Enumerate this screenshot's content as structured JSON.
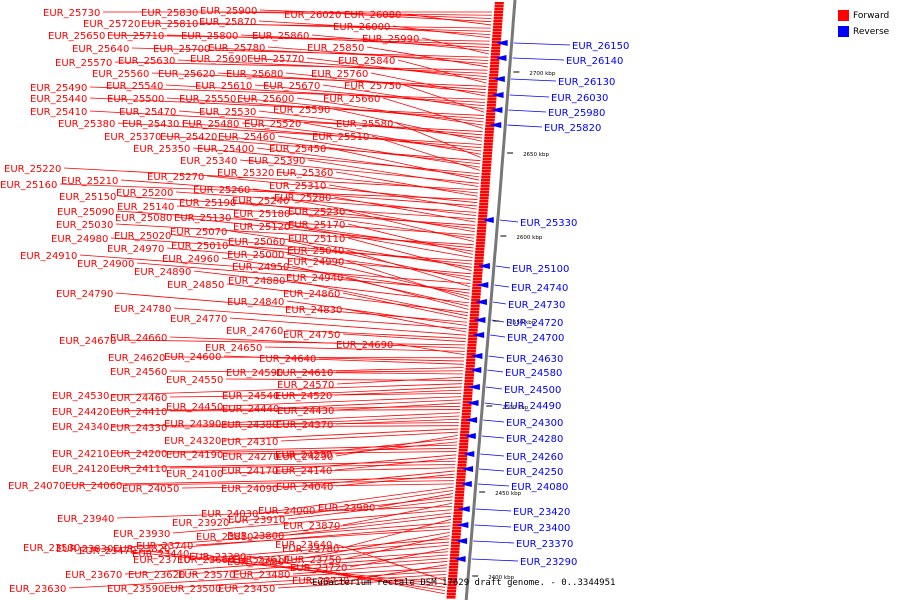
{
  "legend": {
    "forward_label": "Forward",
    "reverse_label": "Reverse",
    "forward_color": "#ff0000",
    "reverse_color": "#0000ff"
  },
  "caption": "Eubacterium rectale DSM 17629 draft genome. - 0..3344951",
  "ticks": [
    "2700 kbp",
    "2650 kbp",
    "2600 kbp",
    "2550 kbp",
    "2500 kbp",
    "2450 kbp",
    "2400 kbp"
  ],
  "forward_labels": [
    "EUR_25730",
    "EUR_25830",
    "EUR_25900",
    "EUR_26020",
    "EUR_26080",
    "EUR_25720",
    "EUR_25810",
    "EUR_25870",
    "EUR_26000",
    "EUR_25650",
    "EUR_25710",
    "EUR_25800",
    "EUR_25860",
    "EUR_25990",
    "EUR_25640",
    "EUR_25700",
    "EUR_25780",
    "EUR_25850",
    "EUR_25570",
    "EUR_25630",
    "EUR_25690",
    "EUR_25770",
    "EUR_25840",
    "EUR_25560",
    "EUR_25620",
    "EUR_25680",
    "EUR_25760",
    "EUR_25490",
    "EUR_25540",
    "EUR_25610",
    "EUR_25670",
    "EUR_25750",
    "EUR_25440",
    "EUR_25500",
    "EUR_25550",
    "EUR_25600",
    "EUR_25660",
    "EUR_25410",
    "EUR_25470",
    "EUR_25530",
    "EUR_25590",
    "EUR_25380",
    "EUR_25430",
    "EUR_25480",
    "EUR_25520",
    "EUR_25580",
    "EUR_25370",
    "EUR_25420",
    "EUR_25460",
    "EUR_25510",
    "EUR_25350",
    "EUR_25400",
    "EUR_25450",
    "EUR_25340",
    "EUR_25390",
    "EUR_25220",
    "EUR_25320",
    "EUR_25360",
    "EUR_25160",
    "EUR_25270",
    "EUR_25210",
    "EUR_25310",
    "EUR_25200",
    "EUR_25260",
    "EUR_25150",
    "EUR_25280",
    "EUR_25140",
    "EUR_25190",
    "EUR_25240",
    "EUR_25090",
    "EUR_25180",
    "EUR_25230",
    "EUR_25030",
    "EUR_25080",
    "EUR_25130",
    "EUR_25170",
    "EUR_25120",
    "EUR_24980",
    "EUR_25020",
    "EUR_25070",
    "EUR_25110",
    "EUR_24970",
    "EUR_25010",
    "EUR_25060",
    "EUR_24910",
    "EUR_25040",
    "EUR_24900",
    "EUR_24960",
    "EUR_25000",
    "EUR_24990",
    "EUR_24890",
    "EUR_24950",
    "EUR_24940",
    "EUR_24850",
    "EUR_24880",
    "EUR_24860",
    "EUR_24790",
    "EUR_24840",
    "EUR_24780",
    "EUR_24830",
    "EUR_24770",
    "EUR_24760",
    "EUR_24750",
    "EUR_24670",
    "EUR_24660",
    "EUR_24650",
    "EUR_24690",
    "EUR_24620",
    "EUR_24640",
    "EUR_24600",
    "EUR_24590",
    "EUR_24610",
    "EUR_24560",
    "EUR_24570",
    "EUR_24550",
    "EUR_24530",
    "EUR_24540",
    "EUR_24520",
    "EUR_24460",
    "EUR_24450",
    "EUR_24440",
    "EUR_24430",
    "EUR_24420",
    "EUR_24410",
    "EUR_24390",
    "EUR_24380",
    "EUR_24370",
    "EUR_24340",
    "EUR_24330",
    "EUR_24320",
    "EUR_24310",
    "EUR_24290",
    "EUR_24270",
    "EUR_24230",
    "EUR_24210",
    "EUR_24200",
    "EUR_24190",
    "EUR_24170",
    "EUR_24140",
    "EUR_24120",
    "EUR_24110",
    "EUR_24100",
    "EUR_24090",
    "EUR_24040",
    "EUR_24070",
    "EUR_24060",
    "EUR_24050",
    "EUR_24030",
    "EUR_24000",
    "EUR_23980",
    "EUR_23920",
    "EUR_23910",
    "EUR_23870",
    "EUR_23940",
    "EUR_23930",
    "EUR_23810",
    "EUR_23800",
    "EUR_23780",
    "EUR_23830",
    "EUR_23820",
    "EUR_23740",
    "EUR_23680",
    "EUR_23750",
    "EUR_23710",
    "EUR_23660",
    "EUR_23610",
    "EUR_23720",
    "EUR_23670",
    "EUR_23620",
    "EUR_23570",
    "EUR_23480",
    "EUR_23730",
    "EUR_23630",
    "EUR_23590",
    "EUR_23500",
    "EUR_23450",
    "EUR_23640",
    "EUR_23530",
    "EUR_23470",
    "EUR_23440",
    "EUR_23380"
  ],
  "reverse_labels": [
    "EUR_26150",
    "EUR_26140",
    "EUR_26130",
    "EUR_26030",
    "EUR_25980",
    "EUR_25820",
    "EUR_25330",
    "EUR_25100",
    "EUR_24740",
    "EUR_24730",
    "EUR_24720",
    "EUR_24700",
    "EUR_24630",
    "EUR_24580",
    "EUR_24500",
    "EUR_24490",
    "EUR_24300",
    "EUR_24280",
    "EUR_24260",
    "EUR_24250",
    "EUR_24080",
    "EUR_23420",
    "EUR_23400",
    "EUR_23370",
    "EUR_23290"
  ]
}
